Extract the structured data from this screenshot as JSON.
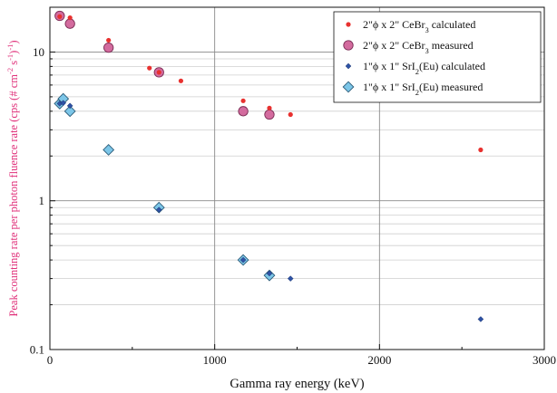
{
  "chart_data": {
    "type": "scatter",
    "xlabel": "Gamma ray energy (keV)",
    "ylabel_parts": [
      "Peak counting rate per photon fluence rate (cps (# cm",
      "-2",
      " s",
      "-1",
      ")",
      "-1",
      ")"
    ],
    "xlim": [
      0,
      3000
    ],
    "ylim": [
      0.1,
      20
    ],
    "yscale": "log",
    "x_ticks": [
      0,
      1000,
      2000,
      3000
    ],
    "x_minor_ticks": [
      500,
      1500,
      2500
    ],
    "y_ticks": [
      0.1,
      1,
      10
    ],
    "y_tick_labels": [
      "0.1",
      "1",
      "10"
    ],
    "grid": true,
    "legend_position": "top-right",
    "series": [
      {
        "label_parts": [
          "2\"ϕ x 2\" CeBr",
          "3",
          " calculated"
        ],
        "marker": "dot",
        "color": "#e8312f",
        "points": [
          [
            59.5,
            17.3
          ],
          [
            122,
            17.0
          ],
          [
            356,
            12.0
          ],
          [
            604,
            7.8
          ],
          [
            662,
            7.3
          ],
          [
            795,
            6.4
          ],
          [
            1173,
            4.7
          ],
          [
            1332,
            4.2
          ],
          [
            1460,
            3.8
          ],
          [
            2614,
            2.2
          ]
        ]
      },
      {
        "label_parts": [
          "2\"ϕ x 2\" CeBr",
          "3",
          " measured"
        ],
        "marker": "circle",
        "color": "#d36b9e",
        "points": [
          [
            59.5,
            17.5
          ],
          [
            122,
            15.5
          ],
          [
            356,
            10.7
          ],
          [
            662,
            7.3
          ],
          [
            1173,
            4.0
          ],
          [
            1332,
            3.8
          ]
        ]
      },
      {
        "label_parts": [
          "1\"ϕ x 1\" SrI",
          "2",
          "(Eu) calculated"
        ],
        "marker": "small-diamond",
        "color": "#2e52a5",
        "points": [
          [
            59.5,
            4.5
          ],
          [
            81,
            4.55
          ],
          [
            122,
            4.35
          ],
          [
            662,
            0.87
          ],
          [
            1173,
            0.4
          ],
          [
            1332,
            0.325
          ],
          [
            1460,
            0.3
          ],
          [
            2614,
            0.16
          ]
        ]
      },
      {
        "label_parts": [
          "1\"ϕ x 1\" SrI",
          "2",
          "(Eu) measured"
        ],
        "marker": "diamond",
        "color": "#7cc6e8",
        "points": [
          [
            59.5,
            4.5
          ],
          [
            81,
            4.85
          ],
          [
            122,
            4.0
          ],
          [
            356,
            2.2
          ],
          [
            662,
            0.9
          ],
          [
            1173,
            0.4
          ],
          [
            1332,
            0.315
          ]
        ]
      }
    ]
  }
}
